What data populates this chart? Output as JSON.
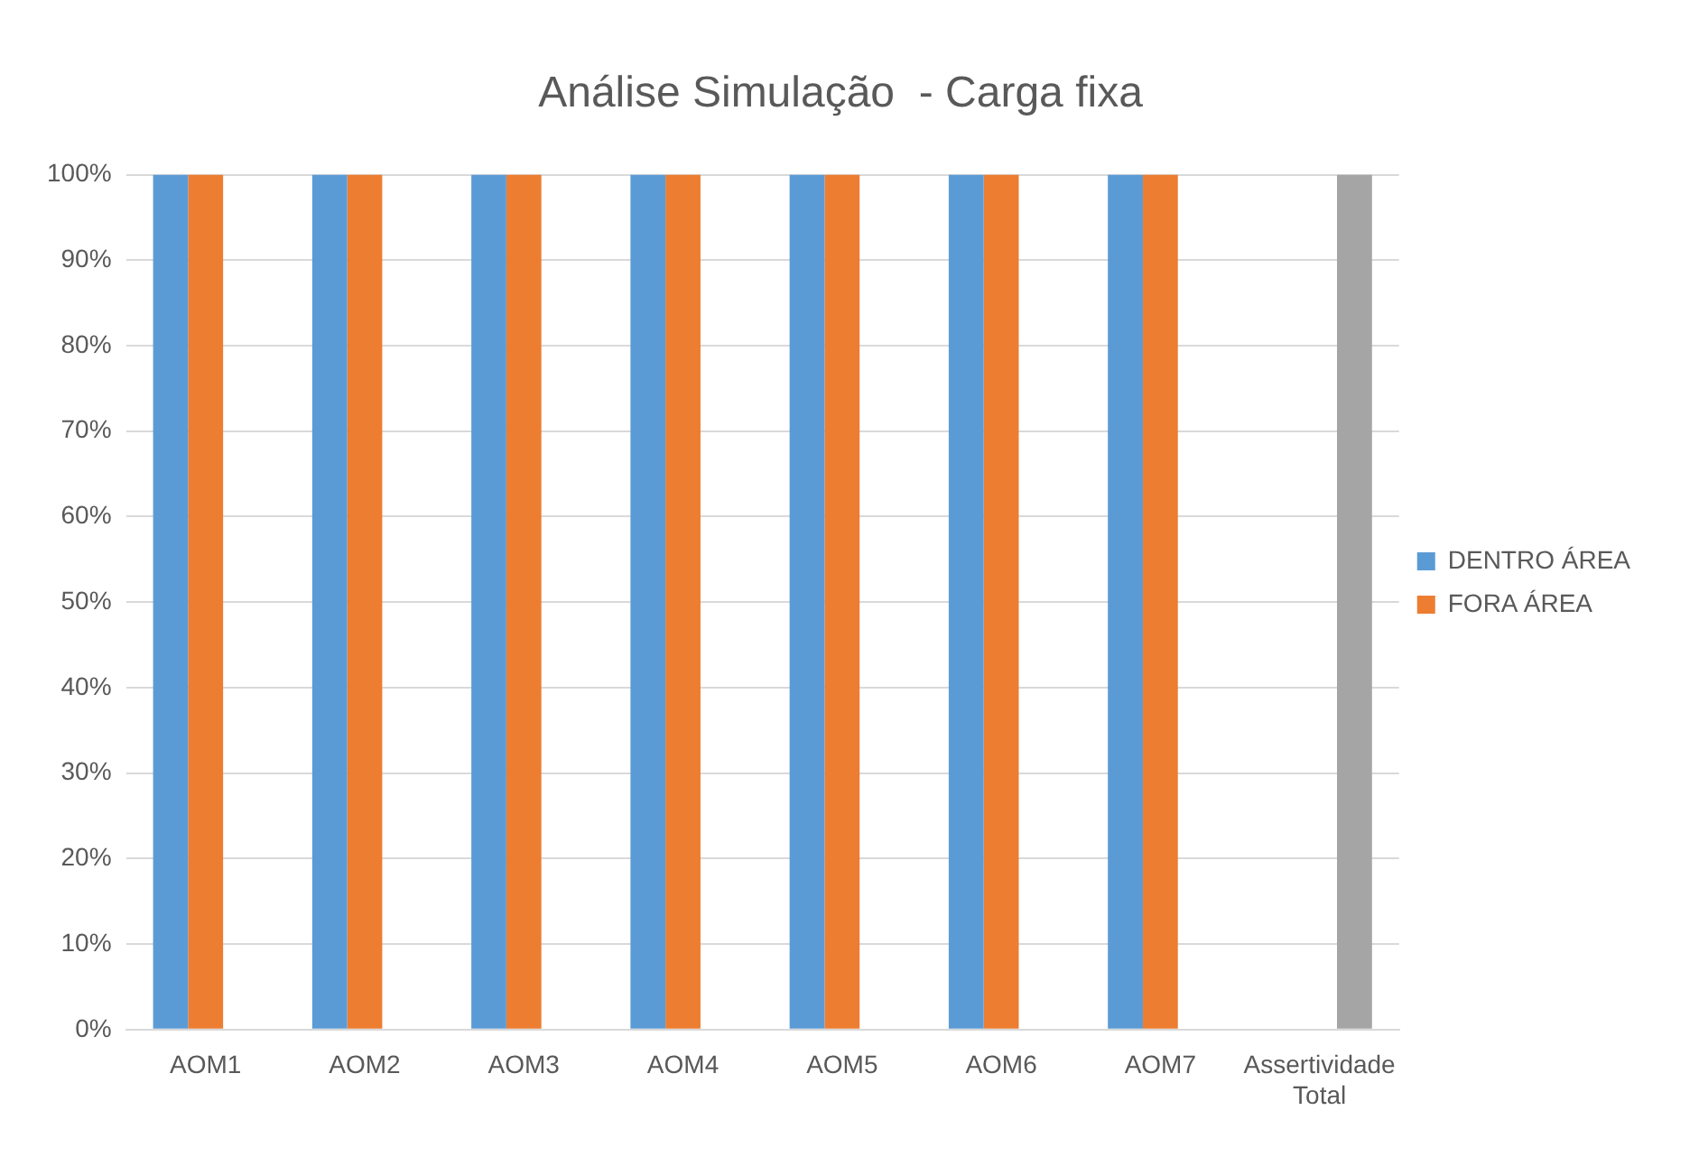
{
  "chart_data": {
    "type": "bar",
    "title": "Análise Simulação  - Carga fixa",
    "categories": [
      "AOM1",
      "AOM2",
      "AOM3",
      "AOM4",
      "AOM5",
      "AOM6",
      "AOM7",
      "Assertividade Total"
    ],
    "series": [
      {
        "name": "DENTRO ÁREA",
        "color": "#5b9bd5",
        "values": [
          100,
          100,
          100,
          100,
          100,
          100,
          100,
          null
        ]
      },
      {
        "name": "FORA ÁREA",
        "color": "#ed7d31",
        "values": [
          100,
          100,
          100,
          100,
          100,
          100,
          100,
          null
        ]
      },
      {
        "color": "#a5a5a5",
        "values": [
          null,
          null,
          null,
          null,
          null,
          null,
          null,
          100
        ]
      }
    ],
    "ylim": [
      0,
      100
    ],
    "yticks": [
      {
        "value": 0,
        "label": "0%"
      },
      {
        "value": 10,
        "label": "10%"
      },
      {
        "value": 20,
        "label": "20%"
      },
      {
        "value": 30,
        "label": "30%"
      },
      {
        "value": 40,
        "label": "40%"
      },
      {
        "value": 50,
        "label": "50%"
      },
      {
        "value": 60,
        "label": "60%"
      },
      {
        "value": 70,
        "label": "70%"
      },
      {
        "value": 80,
        "label": "80%"
      },
      {
        "value": 90,
        "label": "90%"
      },
      {
        "value": 100,
        "label": "100%"
      }
    ],
    "grid": "y",
    "legend": "right"
  }
}
